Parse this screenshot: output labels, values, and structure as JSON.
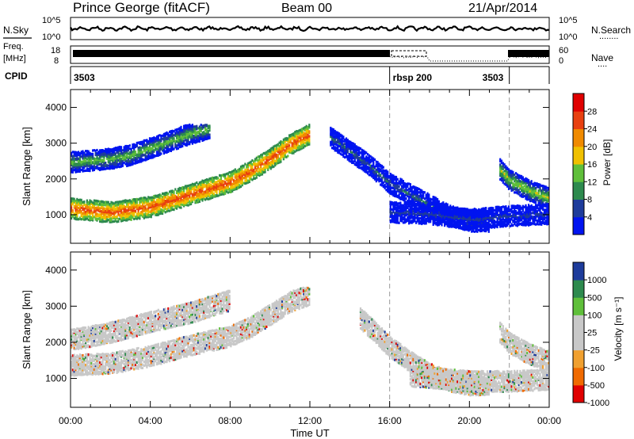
{
  "header": {
    "station": "Prince George (fitACF)",
    "beam": "Beam 00",
    "date": "21/Apr/2014"
  },
  "nsky_panel": {
    "left_label": "N.Sky",
    "right_label": "N.Search",
    "right_line": "........",
    "ytick_top": "10^5",
    "ytick_bottom": "10^0"
  },
  "freq_panel": {
    "label_line1": "Freq.",
    "label_line2": "[MHz]",
    "ytick_top": "18",
    "ytick_bottom": "8",
    "right_label": "Nave",
    "right_line": "....",
    "right_tick_top": "60",
    "right_tick_bottom": "0"
  },
  "cpid": {
    "label": "CPID",
    "segments": [
      {
        "label": "3503",
        "start_h": 0
      },
      {
        "label": "rbsp 200",
        "start_h": 16
      },
      {
        "label": "3503",
        "start_h": 22
      }
    ]
  },
  "power_panel": {
    "ylabel": "Slant Range [km]",
    "yticks": [
      "4000",
      "3000",
      "2000",
      "1000"
    ],
    "colorbar_label": "Power [dB]",
    "colorbar_ticks": [
      "28",
      "24",
      "20",
      "16",
      "12",
      "8",
      "4"
    ]
  },
  "velocity_panel": {
    "ylabel": "Slant Range [km]",
    "yticks": [
      "4000",
      "3000",
      "2000",
      "1000"
    ],
    "colorbar_label": "Velocity [m s⁻¹]",
    "colorbar_ticks": [
      "1000",
      "500",
      "100",
      "25",
      "-25",
      "-100",
      "-500",
      "-1000"
    ]
  },
  "x_axis": {
    "label": "Time UT",
    "ticks": [
      "00:00",
      "04:00",
      "08:00",
      "12:00",
      "16:00",
      "20:00",
      "00:00"
    ]
  },
  "chart_data": {
    "type": "heatmap",
    "xlabel": "Time UT",
    "ylabel": "Slant Range [km]",
    "xlim_hours": [
      0,
      24
    ],
    "ylim_km": [
      200,
      4500
    ],
    "mode_change_lines_hours": [
      16,
      22
    ],
    "power_colors": [
      "#0014f0",
      "#1e3c9b",
      "#2d8a4e",
      "#5fbf3a",
      "#f0c000",
      "#f08a00",
      "#e84010",
      "#e00000"
    ],
    "velocity_colors": [
      "#e00000",
      "#f06a00",
      "#f0a030",
      "#c8c8c8",
      "#c8c8c8",
      "#5fbf3a",
      "#2d8a4e",
      "#1e3c9b"
    ],
    "power_bands": [
      {
        "name": "main echo band",
        "points": [
          [
            0,
            1200
          ],
          [
            2,
            1100
          ],
          [
            4,
            1250
          ],
          [
            6,
            1600
          ],
          [
            8,
            1950
          ],
          [
            9,
            2250
          ],
          [
            10,
            2600
          ],
          [
            11,
            3000
          ],
          [
            12,
            3300
          ]
        ],
        "power_db": 26
      },
      {
        "name": "upper band",
        "points": [
          [
            0,
            2500
          ],
          [
            2,
            2600
          ],
          [
            3,
            2700
          ],
          [
            4,
            2900
          ],
          [
            5,
            3100
          ],
          [
            6,
            3300
          ],
          [
            7,
            3450
          ]
        ],
        "power_db": 14
      },
      {
        "name": "descending band",
        "points": [
          [
            13,
            3200
          ],
          [
            14,
            2800
          ],
          [
            15,
            2400
          ],
          [
            16,
            1900
          ],
          [
            17,
            1600
          ],
          [
            18,
            1300
          ],
          [
            19,
            1000
          ],
          [
            20,
            850
          ],
          [
            21,
            830
          ]
        ],
        "power_db": 8
      },
      {
        "name": "late band",
        "points": [
          [
            21.5,
            2300
          ],
          [
            22,
            2000
          ],
          [
            23,
            1700
          ],
          [
            24,
            1500
          ]
        ],
        "power_db": 16
      },
      {
        "name": "low range band",
        "points": [
          [
            16,
            1100
          ],
          [
            18,
            1050
          ],
          [
            20,
            900
          ],
          [
            22,
            1000
          ],
          [
            24,
            1050
          ]
        ],
        "power_db": 6
      }
    ],
    "velocity_bands": [
      {
        "name": "main echo band",
        "points": [
          [
            0,
            1400
          ],
          [
            2,
            1450
          ],
          [
            4,
            1650
          ],
          [
            6,
            1950
          ],
          [
            8,
            2200
          ],
          [
            9,
            2450
          ],
          [
            10,
            2800
          ],
          [
            11,
            3150
          ],
          [
            12,
            3350
          ]
        ],
        "velocity": 0
      },
      {
        "name": "upper band",
        "points": [
          [
            0,
            2100
          ],
          [
            2,
            2300
          ],
          [
            4,
            2600
          ],
          [
            6,
            2850
          ],
          [
            8,
            3200
          ]
        ],
        "velocity": 0
      },
      {
        "name": "descending band",
        "points": [
          [
            14.5,
            2700
          ],
          [
            16,
            1900
          ],
          [
            17,
            1500
          ],
          [
            18,
            1150
          ],
          [
            19,
            950
          ],
          [
            20,
            850
          ],
          [
            21,
            850
          ]
        ],
        "velocity": 0
      },
      {
        "name": "late band",
        "points": [
          [
            21.5,
            2300
          ],
          [
            22,
            2000
          ],
          [
            23,
            1700
          ],
          [
            24,
            1500
          ]
        ],
        "velocity": 0
      },
      {
        "name": "low range band",
        "points": [
          [
            17,
            1100
          ],
          [
            20,
            950
          ],
          [
            22,
            950
          ],
          [
            24,
            1000
          ]
        ],
        "velocity": 0
      }
    ]
  }
}
